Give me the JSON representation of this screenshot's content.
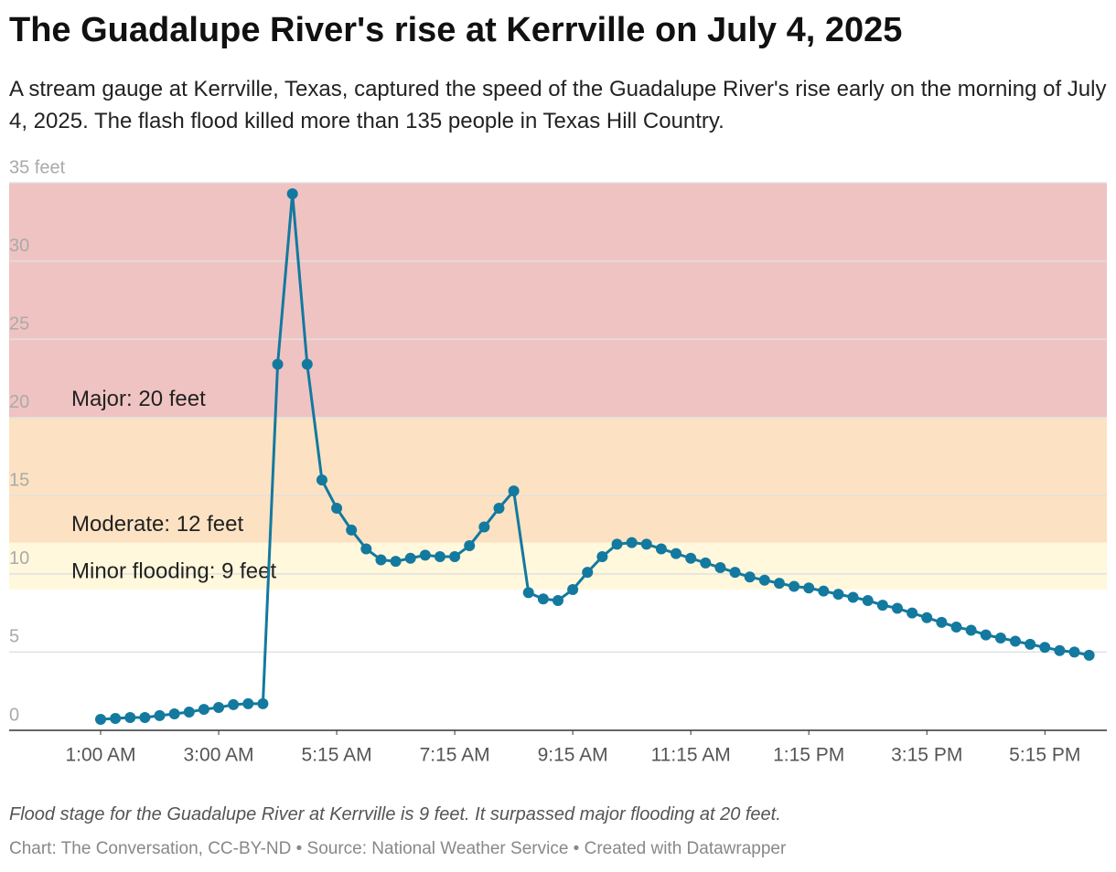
{
  "chart_data": {
    "type": "line",
    "title": "The Guadalupe River's rise at Kerrville on July 4, 2025",
    "subtitle": "A stream gauge at Kerrville, Texas, captured the speed of the Guadalupe River's rise early on the morning of July 4, 2025. The flash flood killed more than 135 people in Texas Hill Country.",
    "note": "Flood stage for the Guadalupe River at Kerrville is 9 feet. It surpassed major flooding at 20 feet.",
    "credit": "Chart: The Conversation, CC-BY-ND • Source: National Weather Service • Created with Datawrapper",
    "color": "#13799f",
    "x": [
      1,
      1.25,
      1.5,
      1.75,
      2,
      2.25,
      2.5,
      2.75,
      3,
      3.25,
      3.5,
      3.75,
      4,
      4.25,
      4.5,
      4.75,
      5,
      5.25,
      5.5,
      5.75,
      6,
      6.25,
      6.5,
      6.75,
      7,
      7.25,
      7.5,
      7.75,
      8,
      8.25,
      8.5,
      8.75,
      9,
      9.25,
      9.5,
      9.75,
      10,
      10.25,
      10.5,
      10.75,
      11,
      11.25,
      11.5,
      11.75,
      12,
      12.25,
      12.5,
      12.75,
      13,
      13.25,
      13.5,
      13.75,
      14,
      14.25,
      14.5,
      14.75,
      15,
      15.25,
      15.5,
      15.75,
      16,
      16.25,
      16.5,
      16.75,
      17,
      17.25,
      17.5,
      17.75
    ],
    "values": [
      0.7,
      0.76,
      0.82,
      0.82,
      0.94,
      1.05,
      1.17,
      1.34,
      1.46,
      1.64,
      1.7,
      1.7,
      23.4,
      34.3,
      23.4,
      16,
      14.2,
      12.8,
      11.6,
      10.9,
      10.8,
      11,
      11.2,
      11.1,
      11.1,
      11.8,
      13,
      14.2,
      15.3,
      8.8,
      8.4,
      8.3,
      9,
      10.1,
      11.1,
      11.9,
      12,
      11.9,
      11.6,
      11.3,
      11,
      10.7,
      10.4,
      10.1,
      9.8,
      9.6,
      9.4,
      9.2,
      9.1,
      8.9,
      8.7,
      8.5,
      8.3,
      8,
      7.8,
      7.5,
      7.2,
      6.9,
      6.6,
      6.4,
      6.1,
      5.9,
      5.7,
      5.5,
      5.3,
      5.1,
      5,
      4.8
    ],
    "xlim": [
      -0.55,
      18.05
    ],
    "xticks": [
      {
        "value": 1,
        "label": "1:00 AM"
      },
      {
        "value": 3,
        "label": "3:00 AM"
      },
      {
        "value": 5,
        "label": "5:15 AM"
      },
      {
        "value": 7,
        "label": "7:15 AM"
      },
      {
        "value": 9,
        "label": "9:15 AM"
      },
      {
        "value": 11,
        "label": "11:15 AM"
      },
      {
        "value": 13,
        "label": "1:15 PM"
      },
      {
        "value": 15,
        "label": "3:15 PM"
      },
      {
        "value": 17,
        "label": "5:15 PM"
      }
    ],
    "ylim": [
      0,
      35
    ],
    "yticks": [
      0,
      5,
      10,
      15,
      20,
      25,
      30,
      {
        "value": 35,
        "label": "35 feet"
      }
    ],
    "grid": true,
    "bands": [
      {
        "label": "Minor flooding: 9 feet",
        "from": 9,
        "to": 12,
        "color": "#fff8dc"
      },
      {
        "label": "Moderate: 12 feet",
        "from": 12,
        "to": 20,
        "color": "#fce2c2"
      },
      {
        "label": "Major: 20 feet",
        "from": 20,
        "to": 35,
        "color": "#f0c3c3"
      }
    ]
  }
}
